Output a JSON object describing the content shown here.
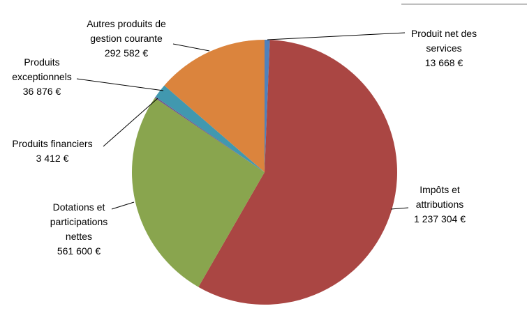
{
  "chart_data": {
    "type": "pie",
    "categories": [
      "Produit net des services",
      "Impôts et attributions",
      "Dotations et participations nettes",
      "Produits financiers",
      "Produits exceptionnels",
      "Autres produits de gestion courante"
    ],
    "values": [
      13668,
      1237304,
      561600,
      3412,
      36876,
      292582
    ],
    "value_labels": [
      "13 668 €",
      "1 237 304 €",
      "561 600 €",
      "3 412 €",
      "36 876 €",
      "292 582 €"
    ],
    "colors": [
      "#4f81bd",
      "#aa4643",
      "#89a54e",
      "#71588f",
      "#4198af",
      "#db843d"
    ]
  }
}
